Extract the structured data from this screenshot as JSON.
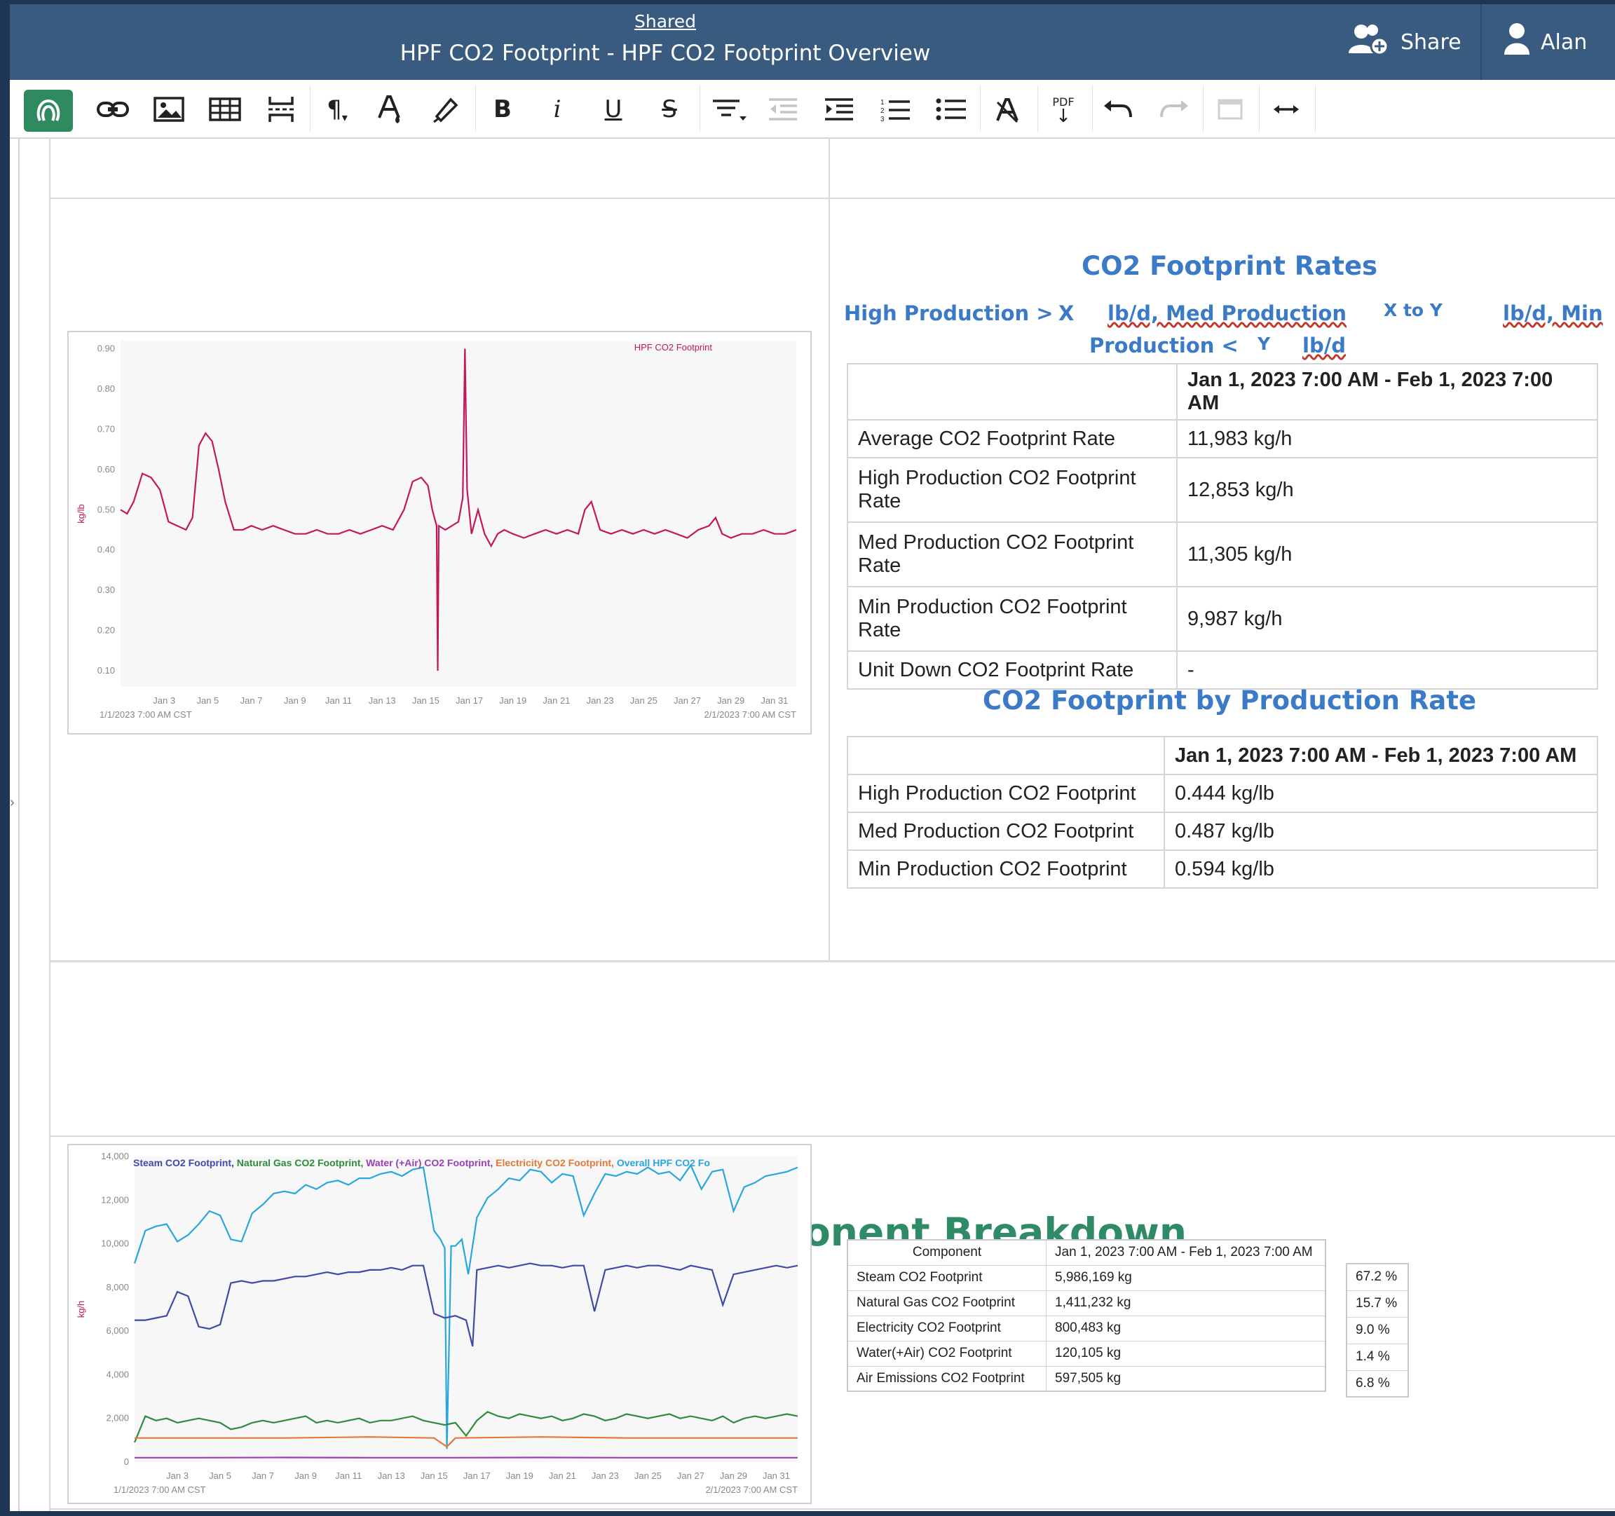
{
  "header": {
    "shared_label": "Shared",
    "title": "HPF CO2 Footprint - HPF CO2 Footprint Overview",
    "share_label": "Share",
    "user_label": "Alan"
  },
  "toolbar": {
    "tools": [
      "seeq-logo",
      "link",
      "image",
      "table",
      "page-break",
      "paragraph",
      "font-color",
      "highlight",
      "bold",
      "italic",
      "underline",
      "strikethrough",
      "align",
      "outdent",
      "indent",
      "ordered-list",
      "bullet-list",
      "clear-format",
      "pdf-export",
      "undo",
      "redo",
      "fullscreen",
      "width"
    ],
    "pdf_label": "PDF",
    "bold_glyph": "B",
    "italic_glyph": "i",
    "underline_glyph": "U",
    "strike_glyph": "S"
  },
  "rates": {
    "title": "CO2 Footprint Rates",
    "subline_1_a": "High Production >",
    "subline_1_b": "X",
    "subline_1_c": "lb/d, Med Production",
    "subline_1_d": "X to Y",
    "subline_1_e": "lb/d, Min",
    "subline_2_a": "Production <",
    "subline_2_b": "Y",
    "subline_2_c": "lb/d",
    "table": {
      "period": "Jan 1, 2023 7:00 AM - Feb 1, 2023 7:00 AM",
      "rows": [
        {
          "label": "Average CO2 Footprint Rate",
          "value": "11,983 kg/h"
        },
        {
          "label": "High Production CO2 Footprint Rate",
          "value": "12,853 kg/h"
        },
        {
          "label": "Med Production CO2 Footprint Rate",
          "value": "11,305 kg/h"
        },
        {
          "label": "Min Production CO2 Footprint Rate",
          "value": "9,987 kg/h"
        },
        {
          "label": "Unit Down CO2 Footprint Rate",
          "value": "-"
        }
      ]
    }
  },
  "byrate": {
    "title": "CO2 Footprint by Production Rate",
    "table": {
      "period": "Jan 1, 2023 7:00 AM - Feb 1, 2023 7:00 AM",
      "rows": [
        {
          "label": "High Production CO2 Footprint",
          "value": "0.444 kg/lb"
        },
        {
          "label": "Med Production CO2 Footprint",
          "value": "0.487 kg/lb"
        },
        {
          "label": "Min Production CO2 Footprint",
          "value": "0.594 kg/lb"
        }
      ]
    }
  },
  "breakdown": {
    "title": "Footprint Component Breakdown",
    "table": {
      "col_component": "Component",
      "period": "Jan 1, 2023 7:00 AM - Feb 1, 2023 7:00 AM",
      "rows": [
        {
          "label": "Steam CO2 Footprint",
          "value": "5,986,169 kg"
        },
        {
          "label": "Natural Gas CO2 Footprint",
          "value": "1,411,232 kg"
        },
        {
          "label": "Electricity CO2 Footprint",
          "value": "800,483 kg"
        },
        {
          "label": "Water(+Air) CO2 Footprint",
          "value": "120,105 kg"
        },
        {
          "label": "Air Emissions CO2 Footprint",
          "value": "597,505 kg"
        }
      ],
      "percents": [
        "67.2 %",
        "15.7 %",
        "9.0 %",
        "1.4 %",
        "6.8 %"
      ]
    }
  },
  "chart_data": [
    {
      "type": "line",
      "title": "",
      "ylabel": "kg/lb",
      "xlabel": "",
      "legend": [
        "HPF CO2 Footprint"
      ],
      "legend_placement": "top-right",
      "x_ticks": [
        "Jan 3",
        "Jan 5",
        "Jan 7",
        "Jan 9",
        "Jan 11",
        "Jan 13",
        "Jan 15",
        "Jan 17",
        "Jan 19",
        "Jan 21",
        "Jan 23",
        "Jan 25",
        "Jan 27",
        "Jan 29",
        "Jan 31"
      ],
      "y_ticks": [
        "0.90",
        "0.80",
        "0.70",
        "0.60",
        "0.50",
        "0.40",
        "0.30",
        "0.20",
        "0.10"
      ],
      "start_label": "1/1/2023 7:00 AM CST",
      "end_label": "2/1/2023 7:00 AM CST",
      "xlim": [
        1,
        32
      ],
      "ylim": [
        0.06,
        0.92
      ],
      "series": [
        {
          "name": "HPF CO2 Footprint",
          "color": "#c2185b",
          "x": [
            1,
            1.3,
            1.6,
            2,
            2.4,
            2.8,
            3.2,
            3.6,
            4,
            4.3,
            4.6,
            4.9,
            5.2,
            5.5,
            5.8,
            6.2,
            6.6,
            7,
            7.5,
            8,
            8.5,
            9,
            9.5,
            10,
            10.5,
            11,
            11.5,
            12,
            12.5,
            13,
            13.5,
            14,
            14.4,
            14.8,
            15.1,
            15.3,
            15.5,
            15.55,
            15.6,
            15.9,
            16.2,
            16.5,
            16.7,
            16.8,
            16.9,
            17.1,
            17.4,
            17.7,
            18,
            18.3,
            18.6,
            19,
            19.5,
            20,
            20.5,
            21,
            21.5,
            22,
            22.3,
            22.6,
            23,
            23.5,
            24,
            24.5,
            25,
            25.5,
            26,
            26.5,
            27,
            27.5,
            28,
            28.3,
            28.6,
            29,
            29.5,
            30,
            30.5,
            31,
            31.5,
            32
          ],
          "y": [
            0.5,
            0.49,
            0.52,
            0.59,
            0.58,
            0.55,
            0.47,
            0.46,
            0.45,
            0.48,
            0.66,
            0.69,
            0.67,
            0.6,
            0.52,
            0.45,
            0.45,
            0.46,
            0.45,
            0.46,
            0.45,
            0.44,
            0.44,
            0.45,
            0.44,
            0.44,
            0.45,
            0.44,
            0.45,
            0.46,
            0.45,
            0.5,
            0.57,
            0.58,
            0.56,
            0.5,
            0.46,
            0.1,
            0.46,
            0.45,
            0.46,
            0.47,
            0.53,
            0.9,
            0.55,
            0.44,
            0.5,
            0.44,
            0.41,
            0.44,
            0.45,
            0.44,
            0.43,
            0.44,
            0.45,
            0.44,
            0.45,
            0.44,
            0.5,
            0.52,
            0.45,
            0.44,
            0.45,
            0.44,
            0.45,
            0.44,
            0.45,
            0.44,
            0.43,
            0.45,
            0.46,
            0.48,
            0.44,
            0.43,
            0.44,
            0.44,
            0.45,
            0.44,
            0.44,
            0.45
          ]
        }
      ]
    },
    {
      "type": "line",
      "title": "",
      "ylabel": "kg/h",
      "xlabel": "",
      "legend": [
        "Steam CO2 Footprint",
        "Natural Gas CO2 Footprint",
        "Water (+Air) CO2 Footprint",
        "Electricity CO2 Footprint",
        "Overall HPF CO2 Fo"
      ],
      "legend_placement": "top",
      "x_ticks": [
        "Jan 3",
        "Jan 5",
        "Jan 7",
        "Jan 9",
        "Jan 11",
        "Jan 13",
        "Jan 15",
        "Jan 17",
        "Jan 19",
        "Jan 21",
        "Jan 23",
        "Jan 25",
        "Jan 27",
        "Jan 29",
        "Jan 31"
      ],
      "y_ticks": [
        "14,000",
        "12,000",
        "10,000",
        "8,000",
        "6,000",
        "4,000",
        "2,000",
        "0"
      ],
      "start_label": "1/1/2023 7:00 AM CST",
      "end_label": "2/1/2023 7:00 AM CST",
      "xlim": [
        1,
        32
      ],
      "ylim": [
        0,
        14000
      ],
      "series": [
        {
          "name": "Overall HPF CO2 Fo",
          "color": "#29a6dc",
          "x": [
            1,
            1.5,
            2,
            2.5,
            3,
            3.5,
            4,
            4.5,
            5,
            5.5,
            6,
            6.5,
            7,
            7.5,
            8,
            8.5,
            9,
            9.5,
            10,
            10.5,
            11,
            11.5,
            12,
            12.5,
            13,
            13.5,
            14,
            14.5,
            15,
            15.3,
            15.5,
            15.6,
            15.8,
            16,
            16.3,
            16.6,
            17,
            17.5,
            18,
            18.5,
            19,
            19.5,
            20,
            20.5,
            21,
            21.5,
            22,
            22.5,
            23,
            23.5,
            24,
            24.5,
            25,
            25.5,
            26,
            26.5,
            27,
            27.5,
            28,
            28.5,
            29,
            29.5,
            30,
            30.5,
            31,
            31.5,
            32
          ],
          "y": [
            9100,
            10600,
            10800,
            10900,
            10100,
            10400,
            10900,
            11500,
            11300,
            10200,
            10100,
            11400,
            11800,
            12300,
            12400,
            12300,
            12700,
            12500,
            12800,
            12900,
            12700,
            13000,
            13000,
            13200,
            13300,
            13100,
            13400,
            13500,
            10600,
            10200,
            9800,
            600,
            9900,
            9900,
            10200,
            8600,
            11200,
            12100,
            12500,
            13000,
            12900,
            13400,
            13300,
            12800,
            13200,
            13100,
            11300,
            12300,
            13200,
            13100,
            13300,
            13200,
            13500,
            13200,
            13300,
            12900,
            13600,
            12500,
            13300,
            13400,
            11500,
            12600,
            12800,
            13100,
            13200,
            13300,
            13500
          ]
        },
        {
          "name": "Steam CO2 Footprint",
          "color": "#3f4aa8",
          "x": [
            1,
            1.5,
            2,
            2.5,
            3,
            3.5,
            4,
            4.5,
            5,
            5.5,
            6,
            6.5,
            7,
            7.5,
            8,
            8.5,
            9,
            9.5,
            10,
            10.5,
            11,
            11.5,
            12,
            12.5,
            13,
            13.5,
            14,
            14.5,
            15,
            15.5,
            16,
            16.5,
            16.8,
            17,
            17.5,
            18,
            18.5,
            19,
            19.5,
            20,
            20.5,
            21,
            21.5,
            22,
            22.5,
            23,
            23.5,
            24,
            24.5,
            25,
            25.5,
            26,
            26.5,
            27,
            27.5,
            28,
            28.5,
            29,
            29.5,
            30,
            30.5,
            31,
            31.5,
            32
          ],
          "y": [
            6500,
            6500,
            6600,
            6700,
            7800,
            7600,
            6200,
            6100,
            6300,
            8200,
            8300,
            8200,
            8300,
            8300,
            8400,
            8500,
            8500,
            8600,
            8700,
            8600,
            8700,
            8700,
            8800,
            8800,
            8900,
            8800,
            9000,
            9000,
            6800,
            6600,
            6700,
            6500,
            5300,
            8800,
            8900,
            9000,
            8900,
            9000,
            9100,
            9000,
            9000,
            8900,
            9000,
            9000,
            6900,
            8800,
            8900,
            9000,
            8900,
            9000,
            9000,
            8900,
            8800,
            9000,
            8900,
            8800,
            7200,
            8600,
            8700,
            8800,
            8900,
            9000,
            8900,
            9000
          ]
        },
        {
          "name": "Natural Gas CO2 Footprint",
          "color": "#2e8b3c",
          "x": [
            1,
            1.5,
            2,
            2.5,
            3,
            3.5,
            4,
            4.5,
            5,
            5.5,
            6,
            6.5,
            7,
            7.5,
            8,
            8.5,
            9,
            9.5,
            10,
            10.5,
            11,
            11.5,
            12,
            12.5,
            13,
            13.5,
            14,
            14.5,
            15,
            15.5,
            16,
            16.5,
            17,
            17.5,
            18,
            18.5,
            19,
            19.5,
            20,
            20.5,
            21,
            21.5,
            22,
            22.5,
            23,
            23.5,
            24,
            24.5,
            25,
            25.5,
            26,
            26.5,
            27,
            27.5,
            28,
            28.5,
            29,
            29.5,
            30,
            30.5,
            31,
            31.5,
            32
          ],
          "y": [
            900,
            2100,
            1900,
            2000,
            1800,
            1900,
            2000,
            1900,
            1800,
            1500,
            1600,
            1800,
            1900,
            1800,
            1900,
            2000,
            2100,
            1800,
            1900,
            1800,
            1900,
            2000,
            1800,
            1900,
            1900,
            2000,
            2100,
            1900,
            1800,
            1700,
            1800,
            1200,
            1900,
            2300,
            2100,
            2000,
            2200,
            2100,
            2000,
            2100,
            1900,
            2000,
            2200,
            2100,
            1900,
            2000,
            2200,
            2100,
            2000,
            2100,
            2200,
            2000,
            2100,
            2000,
            1900,
            2100,
            1800,
            2000,
            2100,
            2000,
            2100,
            2200,
            2100
          ]
        },
        {
          "name": "Electricity CO2 Footprint",
          "color": "#e07a3a",
          "x": [
            1,
            4,
            8,
            12,
            15,
            15.6,
            16,
            20,
            24,
            28,
            32
          ],
          "y": [
            1100,
            1100,
            1100,
            1150,
            1100,
            700,
            1100,
            1150,
            1100,
            1100,
            1100
          ]
        },
        {
          "name": "Water (+Air) CO2 Footprint",
          "color": "#9b3fb5",
          "x": [
            1,
            4,
            8,
            12,
            16,
            20,
            24,
            28,
            32
          ],
          "y": [
            200,
            200,
            210,
            200,
            200,
            210,
            200,
            200,
            200
          ]
        }
      ]
    }
  ]
}
